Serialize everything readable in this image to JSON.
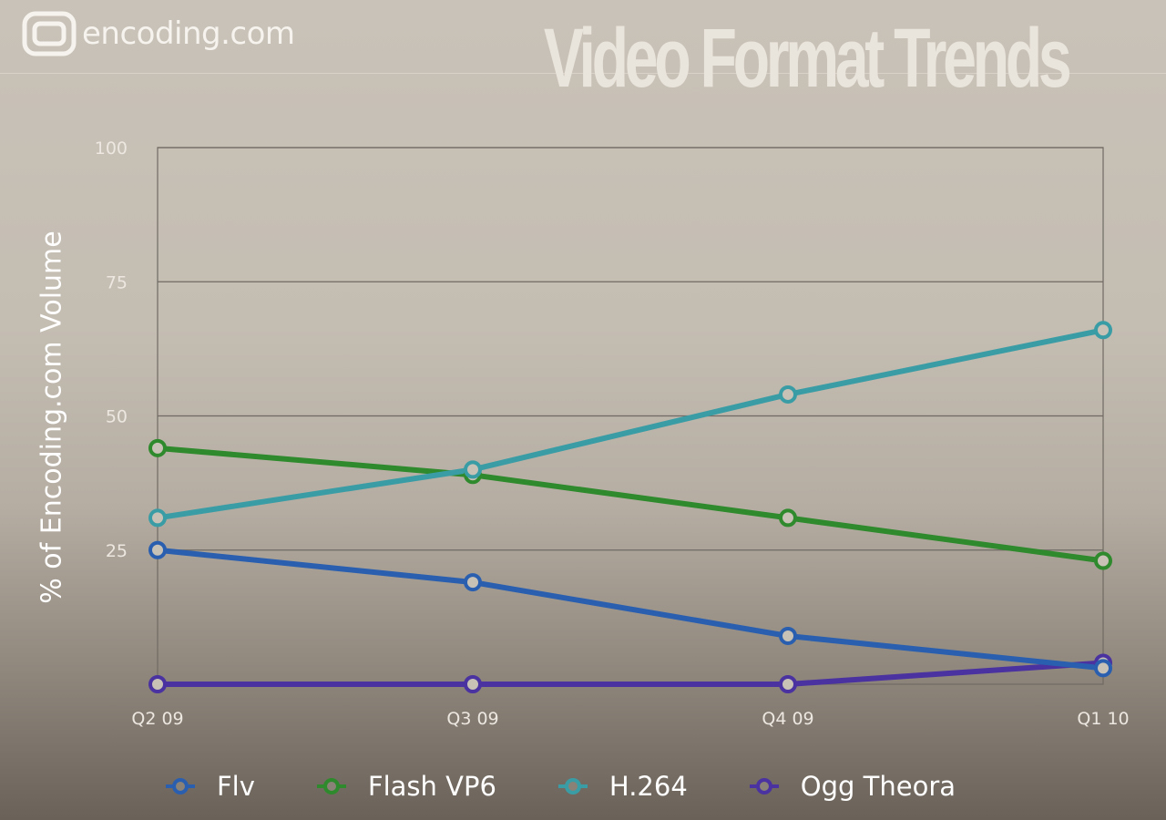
{
  "brand": {
    "logo_text": "encoding.com"
  },
  "chart_data": {
    "type": "line",
    "title": "Video Format Trends",
    "ylabel": "% of Encoding.com Volume",
    "xlabel": "",
    "categories": [
      "Q2 09",
      "Q3 09",
      "Q4 09",
      "Q1 10"
    ],
    "ylim": [
      0,
      100
    ],
    "yticks": [
      "100",
      "75",
      "50",
      "25"
    ],
    "yticks_values": [
      100,
      75,
      50,
      25
    ],
    "grid": true,
    "legend_position": "bottom",
    "series": [
      {
        "name": "Flv",
        "color": "#2a5fb0",
        "values": [
          25,
          19,
          9,
          3
        ]
      },
      {
        "name": "Flash VP6",
        "color": "#2e8a2c",
        "values": [
          44,
          39,
          31,
          23
        ]
      },
      {
        "name": "H.264",
        "color": "#3a9da5",
        "values": [
          31,
          40,
          54,
          66
        ]
      },
      {
        "name": "Ogg Theora",
        "color": "#4a32a0",
        "values": [
          0,
          0,
          0,
          4
        ]
      }
    ]
  }
}
